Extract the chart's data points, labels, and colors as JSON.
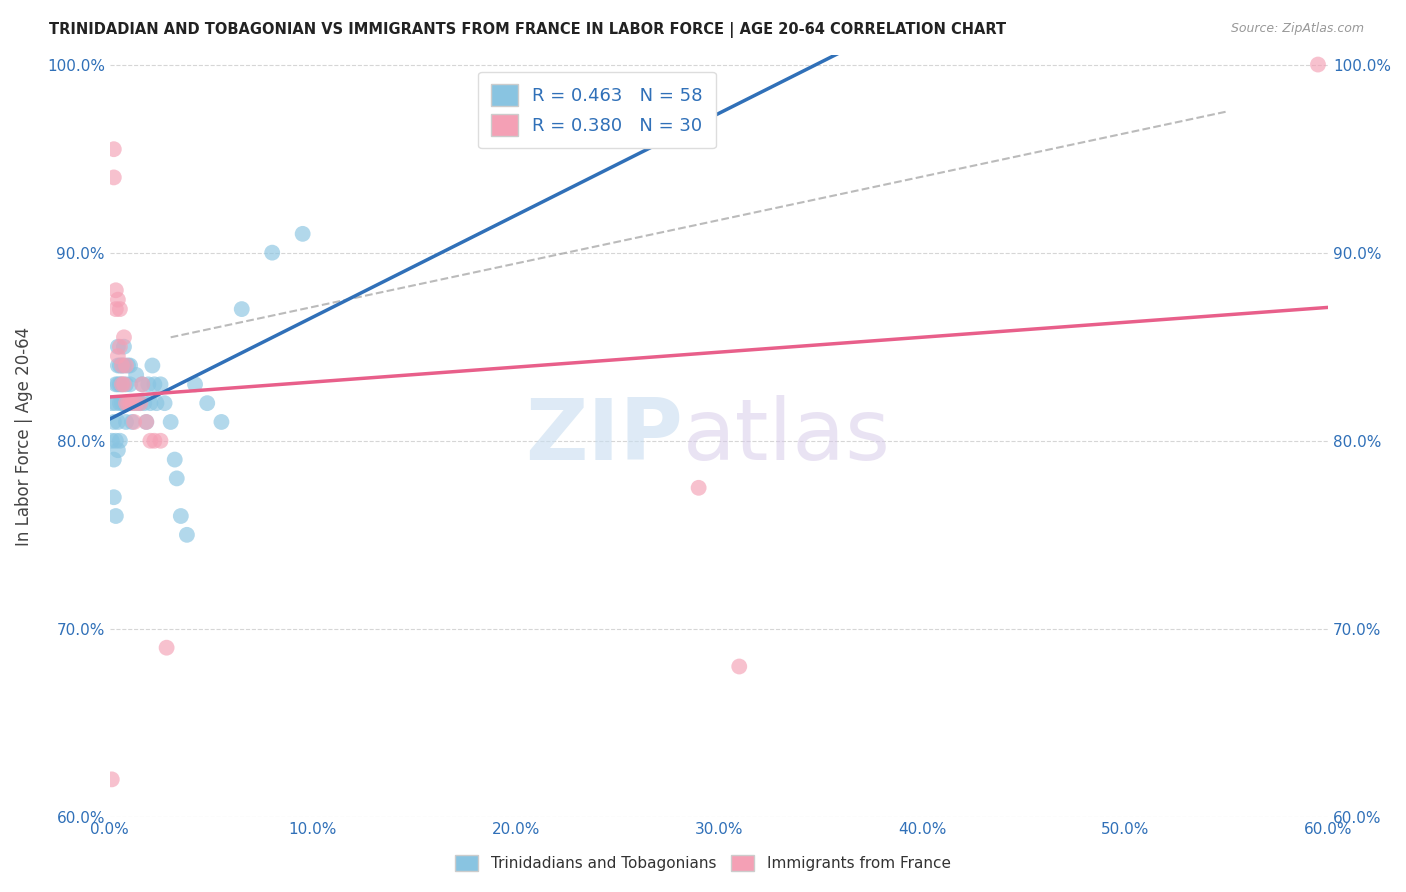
{
  "title": "TRINIDADIAN AND TOBAGONIAN VS IMMIGRANTS FROM FRANCE IN LABOR FORCE | AGE 20-64 CORRELATION CHART",
  "source": "Source: ZipAtlas.com",
  "ylabel": "In Labor Force | Age 20-64",
  "xmin": 0.0,
  "xmax": 0.6,
  "ymin": 0.6,
  "ymax": 1.005,
  "blue_R": 0.463,
  "blue_N": 58,
  "pink_R": 0.38,
  "pink_N": 30,
  "blue_color": "#89c4e1",
  "pink_color": "#f4a0b5",
  "blue_line_color": "#3070b8",
  "pink_line_color": "#e85f8a",
  "legend_label_blue": "Trinidadians and Tobagonians",
  "legend_label_pink": "Immigrants from France",
  "blue_scatter_x": [
    0.001,
    0.001,
    0.002,
    0.002,
    0.002,
    0.003,
    0.003,
    0.003,
    0.003,
    0.004,
    0.004,
    0.004,
    0.004,
    0.004,
    0.005,
    0.005,
    0.005,
    0.005,
    0.006,
    0.006,
    0.006,
    0.007,
    0.007,
    0.007,
    0.008,
    0.008,
    0.008,
    0.009,
    0.009,
    0.01,
    0.01,
    0.01,
    0.011,
    0.012,
    0.013,
    0.014,
    0.015,
    0.016,
    0.017,
    0.018,
    0.019,
    0.02,
    0.021,
    0.022,
    0.023,
    0.025,
    0.027,
    0.03,
    0.032,
    0.033,
    0.035,
    0.038,
    0.042,
    0.048,
    0.055,
    0.065,
    0.08,
    0.095
  ],
  "blue_scatter_y": [
    0.82,
    0.8,
    0.79,
    0.81,
    0.77,
    0.82,
    0.83,
    0.8,
    0.76,
    0.85,
    0.84,
    0.83,
    0.81,
    0.795,
    0.84,
    0.83,
    0.82,
    0.8,
    0.84,
    0.83,
    0.82,
    0.85,
    0.84,
    0.82,
    0.83,
    0.82,
    0.81,
    0.84,
    0.82,
    0.84,
    0.83,
    0.82,
    0.81,
    0.82,
    0.835,
    0.82,
    0.82,
    0.83,
    0.82,
    0.81,
    0.83,
    0.82,
    0.84,
    0.83,
    0.82,
    0.83,
    0.82,
    0.81,
    0.79,
    0.78,
    0.76,
    0.75,
    0.83,
    0.82,
    0.81,
    0.87,
    0.9,
    0.91
  ],
  "pink_scatter_x": [
    0.001,
    0.002,
    0.002,
    0.003,
    0.003,
    0.004,
    0.004,
    0.005,
    0.005,
    0.006,
    0.006,
    0.007,
    0.007,
    0.008,
    0.008,
    0.009,
    0.01,
    0.011,
    0.012,
    0.013,
    0.015,
    0.016,
    0.018,
    0.02,
    0.022,
    0.025,
    0.028,
    0.29,
    0.31,
    0.595
  ],
  "pink_scatter_y": [
    0.62,
    0.955,
    0.94,
    0.88,
    0.87,
    0.875,
    0.845,
    0.87,
    0.85,
    0.84,
    0.83,
    0.855,
    0.83,
    0.84,
    0.82,
    0.82,
    0.82,
    0.82,
    0.81,
    0.82,
    0.82,
    0.83,
    0.81,
    0.8,
    0.8,
    0.8,
    0.69,
    0.775,
    0.68,
    1.0
  ],
  "watermark_zip": "ZIP",
  "watermark_atlas": "atlas",
  "xtick_labels": [
    "0.0%",
    "10.0%",
    "20.0%",
    "30.0%",
    "40.0%",
    "50.0%",
    "60.0%"
  ],
  "ytick_labels": [
    "60.0%",
    "70.0%",
    "80.0%",
    "90.0%",
    "100.0%"
  ],
  "ytick_values": [
    0.6,
    0.7,
    0.8,
    0.9,
    1.0
  ],
  "xtick_values": [
    0.0,
    0.1,
    0.2,
    0.3,
    0.4,
    0.5,
    0.6
  ],
  "dash_line_x": [
    0.03,
    0.55
  ],
  "dash_line_y": [
    0.855,
    0.975
  ]
}
